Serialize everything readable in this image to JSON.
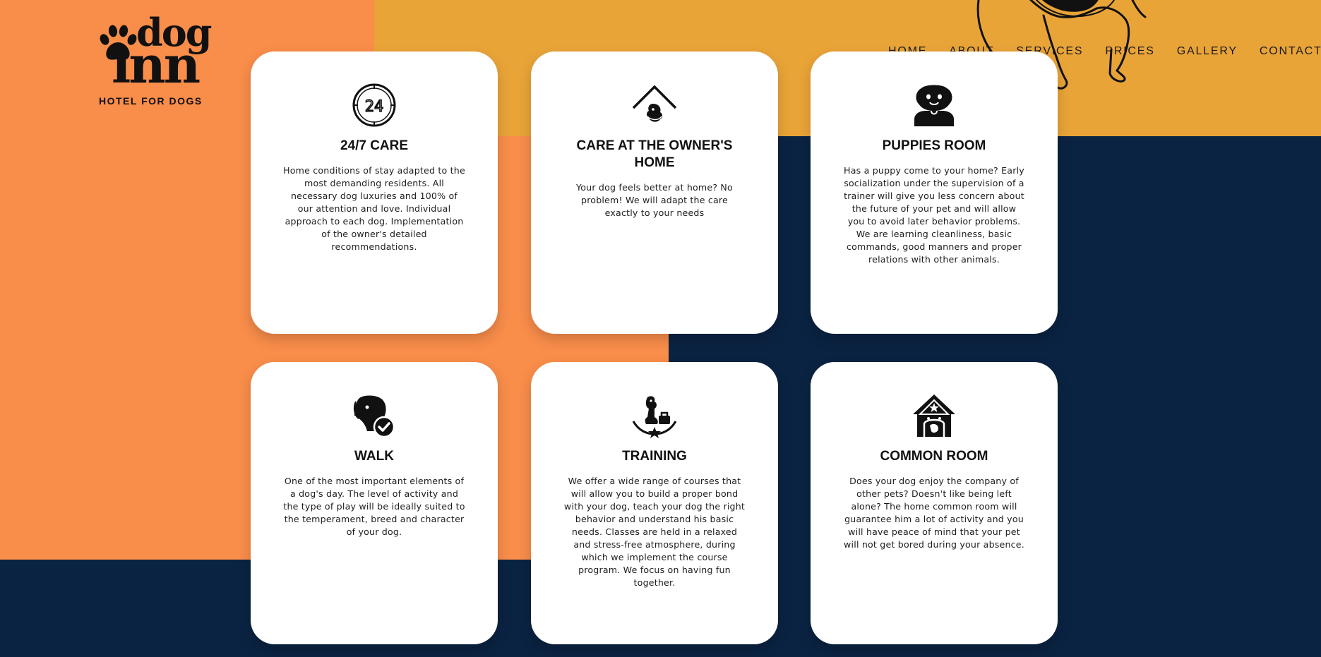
{
  "brand": {
    "name_top": "dog",
    "name_bottom": "inn",
    "tagline": "HOTEL FOR DOGS"
  },
  "nav": {
    "items": [
      {
        "label": "HOME"
      },
      {
        "label": "ABOUT"
      },
      {
        "label": "SERVICES"
      },
      {
        "label": "PRICES"
      },
      {
        "label": "GALLERY"
      },
      {
        "label": "CONTACT"
      }
    ]
  },
  "colors": {
    "orange": "#f98d4a",
    "yellow": "#e9a438",
    "navy": "#0a2342",
    "card": "#ffffff"
  },
  "services": [
    {
      "icon": "clock-24-icon",
      "title": "24/7 CARE",
      "text": "Home conditions of stay adapted to the most demanding residents. All necessary dog luxuries and 100% of our attention and love. Individual approach to each dog. Implementation of the owner's detailed recommendations."
    },
    {
      "icon": "dog-house-icon",
      "title": "CARE AT THE OWNER'S HOME",
      "text": "Your dog feels better at home? No problem! We will adapt the care exactly to your needs"
    },
    {
      "icon": "puppy-icon",
      "title": "PUPPIES ROOM",
      "text": "Has a puppy come to your home? Early socialization under the supervision of a trainer will give you less concern about the future of your pet and will allow you to avoid later behavior problems. We are learning cleanliness, basic commands, good manners and proper relations with other animals."
    },
    {
      "icon": "dog-check-icon",
      "title": "WALK",
      "text": "One of the most important elements of a dog's day. The level of activity and the type of play will be ideally suited to the temperament, breed and character of your dog."
    },
    {
      "icon": "dog-training-icon",
      "title": "TRAINING",
      "text": "We offer a wide range of courses that will allow you to build a proper bond with your dog, teach your dog the right behavior and understand his basic needs. Classes are held in a relaxed and stress-free atmosphere, during which we implement the course program. We focus on having fun together."
    },
    {
      "icon": "dog-house-star-icon",
      "title": "COMMON ROOM",
      "text": "Does your dog enjoy the company of other pets? Doesn't like being left alone? The home common room will guarantee him a lot of activity and you will have peace of mind that your pet will not get bored during your absence."
    }
  ]
}
